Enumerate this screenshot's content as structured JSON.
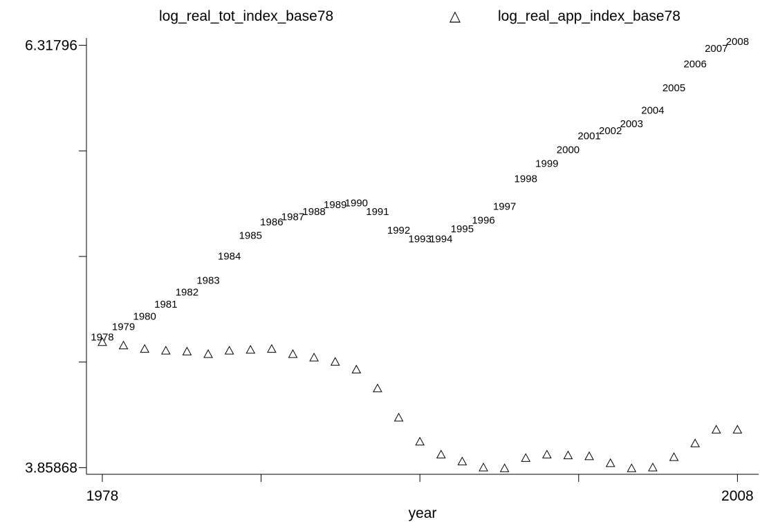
{
  "chart_data": {
    "type": "scatter",
    "xlabel": "year",
    "ylabel": "",
    "xlim": [
      1977.25,
      2009.0
    ],
    "ylim": [
      3.82,
      6.36
    ],
    "y_tick_values": [
      3.85868,
      4.4735,
      5.0883,
      5.7031,
      6.31796
    ],
    "y_tick_labels": [
      "3.85868",
      "",
      "",
      "",
      "6.31796"
    ],
    "x_tick_values": [
      1978,
      1993,
      2008
    ],
    "x_minor_tick_values": [
      1985.5,
      2000.5
    ],
    "x_tick_labels": [
      "1978",
      "",
      "2008"
    ],
    "legend_position": "top",
    "series": [
      {
        "name": "log_real_tot_index_base78",
        "marker": "year-label",
        "x": [
          1978,
          1979,
          1980,
          1981,
          1982,
          1983,
          1984,
          1985,
          1986,
          1987,
          1988,
          1989,
          1990,
          1991,
          1992,
          1993,
          1994,
          1995,
          1996,
          1997,
          1998,
          1999,
          2000,
          2001,
          2002,
          2003,
          2004,
          2005,
          2006,
          2007,
          2008
        ],
        "y": [
          4.62,
          4.68,
          4.74,
          4.81,
          4.88,
          4.95,
          5.09,
          5.21,
          5.29,
          5.32,
          5.35,
          5.39,
          5.4,
          5.35,
          5.24,
          5.19,
          5.19,
          5.25,
          5.3,
          5.38,
          5.54,
          5.63,
          5.71,
          5.79,
          5.82,
          5.86,
          5.94,
          6.07,
          6.21,
          6.3,
          6.34
        ]
      },
      {
        "name": "log_real_app_index_base78",
        "marker": "triangle",
        "x": [
          1978,
          1979,
          1980,
          1981,
          1982,
          1983,
          1984,
          1985,
          1986,
          1987,
          1988,
          1989,
          1990,
          1991,
          1992,
          1993,
          1994,
          1995,
          1996,
          1997,
          1998,
          1999,
          2000,
          2001,
          2002,
          2003,
          2004,
          2005,
          2006,
          2007,
          2008
        ],
        "y": [
          4.59,
          4.57,
          4.55,
          4.54,
          4.535,
          4.52,
          4.54,
          4.545,
          4.55,
          4.52,
          4.5,
          4.475,
          4.43,
          4.32,
          4.15,
          4.01,
          3.935,
          3.895,
          3.86,
          3.855,
          3.915,
          3.935,
          3.93,
          3.925,
          3.885,
          3.855,
          3.86,
          3.92,
          4.0,
          4.08,
          4.08
        ]
      }
    ]
  },
  "colors": {
    "ink": "#000000",
    "background": "#ffffff"
  }
}
